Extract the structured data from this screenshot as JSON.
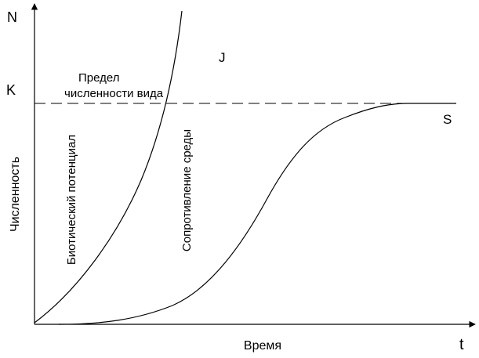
{
  "diagram": {
    "labels": {
      "y_axis_letter": "N",
      "x_axis_letter": "t",
      "capacity_letter": "K",
      "y_axis_title": "Численность",
      "x_axis_title": "Время",
      "j_curve": "J",
      "s_curve": "S",
      "limit_line1": "Предел",
      "limit_line2": "численности вида",
      "biotic_potential": "Биотический потенциал",
      "environmental_resistance": "Сопротивление среды"
    },
    "colors": {
      "line": "#000000",
      "text": "#000000"
    }
  }
}
